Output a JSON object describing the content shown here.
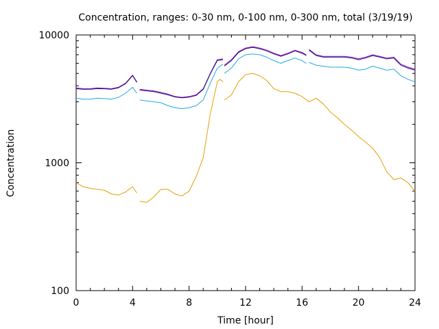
{
  "chart_data": {
    "type": "line",
    "title": "Concentration, ranges: 0-30 nm, 0-100 nm, 0-300 nm, total (3/19/19)",
    "xlabel": "Time [hour]",
    "ylabel": "Concentration",
    "xlim": [
      0,
      24
    ],
    "ylim": [
      100,
      10000
    ],
    "yscale": "log",
    "grid": false,
    "legend": "none",
    "x_ticks": [
      "0",
      "4",
      "8",
      "12",
      "16",
      "20",
      "24"
    ],
    "y_ticks": [
      "100",
      "1000",
      "10000"
    ],
    "series": [
      {
        "color": "#e5a000",
        "gaps_after_x": [
          4.3,
          10.4
        ],
        "points": [
          [
            0,
            700
          ],
          [
            0.5,
            650
          ],
          [
            1,
            630
          ],
          [
            1.5,
            620
          ],
          [
            2,
            610
          ],
          [
            2.5,
            570
          ],
          [
            3,
            560
          ],
          [
            3.5,
            590
          ],
          [
            4,
            650
          ],
          [
            4.3,
            580
          ],
          [
            4.5,
            500
          ],
          [
            5,
            490
          ],
          [
            5.5,
            540
          ],
          [
            6,
            620
          ],
          [
            6.5,
            620
          ],
          [
            7,
            570
          ],
          [
            7.5,
            550
          ],
          [
            8,
            600
          ],
          [
            8.5,
            780
          ],
          [
            9,
            1100
          ],
          [
            9.5,
            2400
          ],
          [
            10,
            4300
          ],
          [
            10.2,
            4500
          ],
          [
            10.4,
            4300
          ],
          [
            10.5,
            3100
          ],
          [
            11,
            3400
          ],
          [
            11.5,
            4300
          ],
          [
            12,
            4900
          ],
          [
            12.5,
            5000
          ],
          [
            13,
            4800
          ],
          [
            13.5,
            4400
          ],
          [
            14,
            3800
          ],
          [
            14.5,
            3600
          ],
          [
            15,
            3600
          ],
          [
            15.5,
            3500
          ],
          [
            16,
            3300
          ],
          [
            16.5,
            3000
          ],
          [
            17,
            3200
          ],
          [
            17.5,
            2900
          ],
          [
            18,
            2500
          ],
          [
            18.5,
            2250
          ],
          [
            19,
            2000
          ],
          [
            19.5,
            1800
          ],
          [
            20,
            1600
          ],
          [
            20.5,
            1450
          ],
          [
            21,
            1300
          ],
          [
            21.5,
            1100
          ],
          [
            22,
            850
          ],
          [
            22.5,
            740
          ],
          [
            23,
            760
          ],
          [
            23.5,
            700
          ],
          [
            24,
            600
          ]
        ]
      },
      {
        "color": "#1ea8e0",
        "gaps_after_x": [
          4.3,
          10.4,
          16.3
        ],
        "points": [
          [
            0,
            3200
          ],
          [
            0.5,
            3150
          ],
          [
            1,
            3150
          ],
          [
            1.5,
            3200
          ],
          [
            2,
            3180
          ],
          [
            2.5,
            3150
          ],
          [
            3,
            3250
          ],
          [
            3.5,
            3500
          ],
          [
            4,
            3900
          ],
          [
            4.3,
            3500
          ],
          [
            4.5,
            3100
          ],
          [
            5,
            3050
          ],
          [
            5.5,
            3000
          ],
          [
            6,
            2950
          ],
          [
            6.5,
            2800
          ],
          [
            7,
            2700
          ],
          [
            7.5,
            2650
          ],
          [
            8,
            2700
          ],
          [
            8.5,
            2800
          ],
          [
            9,
            3100
          ],
          [
            9.5,
            4200
          ],
          [
            10,
            5500
          ],
          [
            10.4,
            5900
          ],
          [
            10.5,
            5000
          ],
          [
            11,
            5500
          ],
          [
            11.5,
            6500
          ],
          [
            12,
            7000
          ],
          [
            12.5,
            7100
          ],
          [
            13,
            7000
          ],
          [
            13.5,
            6700
          ],
          [
            14,
            6300
          ],
          [
            14.5,
            6000
          ],
          [
            15,
            6300
          ],
          [
            15.5,
            6600
          ],
          [
            16,
            6300
          ],
          [
            16.3,
            6000
          ],
          [
            16.5,
            6100
          ],
          [
            17,
            5800
          ],
          [
            17.5,
            5700
          ],
          [
            18,
            5600
          ],
          [
            18.5,
            5600
          ],
          [
            19,
            5600
          ],
          [
            19.5,
            5500
          ],
          [
            20,
            5300
          ],
          [
            20.5,
            5400
          ],
          [
            21,
            5700
          ],
          [
            21.5,
            5500
          ],
          [
            22,
            5300
          ],
          [
            22.5,
            5400
          ],
          [
            23,
            4800
          ],
          [
            23.5,
            4500
          ],
          [
            24,
            4300
          ]
        ]
      },
      {
        "color": "#9400d3",
        "gaps_after_x": [
          4.3,
          10.4,
          16.3
        ],
        "points": [
          [
            0,
            3850
          ],
          [
            0.5,
            3800
          ],
          [
            1,
            3800
          ],
          [
            1.5,
            3850
          ],
          [
            2,
            3830
          ],
          [
            2.5,
            3800
          ],
          [
            3,
            3900
          ],
          [
            3.5,
            4200
          ],
          [
            4,
            4850
          ],
          [
            4.3,
            4300
          ],
          [
            4.5,
            3750
          ],
          [
            5,
            3700
          ],
          [
            5.5,
            3650
          ],
          [
            6,
            3550
          ],
          [
            6.5,
            3450
          ],
          [
            7,
            3300
          ],
          [
            7.5,
            3250
          ],
          [
            8,
            3300
          ],
          [
            8.5,
            3400
          ],
          [
            9,
            3800
          ],
          [
            9.5,
            5000
          ],
          [
            10,
            6400
          ],
          [
            10.4,
            6500
          ],
          [
            10.5,
            5800
          ],
          [
            11,
            6400
          ],
          [
            11.5,
            7400
          ],
          [
            12,
            7900
          ],
          [
            12.5,
            8100
          ],
          [
            13,
            7900
          ],
          [
            13.5,
            7600
          ],
          [
            14,
            7200
          ],
          [
            14.5,
            6900
          ],
          [
            15,
            7200
          ],
          [
            15.5,
            7600
          ],
          [
            16,
            7300
          ],
          [
            16.3,
            7000
          ],
          [
            16.5,
            7700
          ],
          [
            17,
            7000
          ],
          [
            17.5,
            6800
          ],
          [
            18,
            6800
          ],
          [
            18.5,
            6800
          ],
          [
            19,
            6800
          ],
          [
            19.5,
            6700
          ],
          [
            20,
            6500
          ],
          [
            20.5,
            6700
          ],
          [
            21,
            7000
          ],
          [
            21.5,
            6800
          ],
          [
            22,
            6600
          ],
          [
            22.5,
            6700
          ],
          [
            23,
            5900
          ],
          [
            23.5,
            5600
          ],
          [
            24,
            5400
          ]
        ]
      },
      {
        "color": "#1f1f6e",
        "gaps_after_x": [
          4.3,
          10.4,
          16.3
        ],
        "points": [
          [
            0,
            3800
          ],
          [
            0.5,
            3750
          ],
          [
            1,
            3760
          ],
          [
            1.5,
            3800
          ],
          [
            2,
            3790
          ],
          [
            2.5,
            3760
          ],
          [
            3,
            3860
          ],
          [
            3.5,
            4150
          ],
          [
            4,
            4800
          ],
          [
            4.3,
            4250
          ],
          [
            4.5,
            3700
          ],
          [
            5,
            3650
          ],
          [
            5.5,
            3600
          ],
          [
            6,
            3500
          ],
          [
            6.5,
            3400
          ],
          [
            7,
            3270
          ],
          [
            7.5,
            3220
          ],
          [
            8,
            3260
          ],
          [
            8.5,
            3360
          ],
          [
            9,
            3750
          ],
          [
            9.5,
            4950
          ],
          [
            10,
            6300
          ],
          [
            10.4,
            6400
          ],
          [
            10.5,
            5700
          ],
          [
            11,
            6300
          ],
          [
            11.5,
            7300
          ],
          [
            12,
            7800
          ],
          [
            12.5,
            8000
          ],
          [
            13,
            7800
          ],
          [
            13.5,
            7500
          ],
          [
            14,
            7100
          ],
          [
            14.5,
            6800
          ],
          [
            15,
            7100
          ],
          [
            15.5,
            7500
          ],
          [
            16,
            7200
          ],
          [
            16.3,
            6900
          ],
          [
            16.5,
            7600
          ],
          [
            17,
            6900
          ],
          [
            17.5,
            6700
          ],
          [
            18,
            6700
          ],
          [
            18.5,
            6700
          ],
          [
            19,
            6700
          ],
          [
            19.5,
            6600
          ],
          [
            20,
            6400
          ],
          [
            20.5,
            6600
          ],
          [
            21,
            6900
          ],
          [
            21.5,
            6700
          ],
          [
            22,
            6500
          ],
          [
            22.5,
            6600
          ],
          [
            23,
            5800
          ],
          [
            23.5,
            5500
          ],
          [
            24,
            5300
          ]
        ]
      }
    ]
  }
}
